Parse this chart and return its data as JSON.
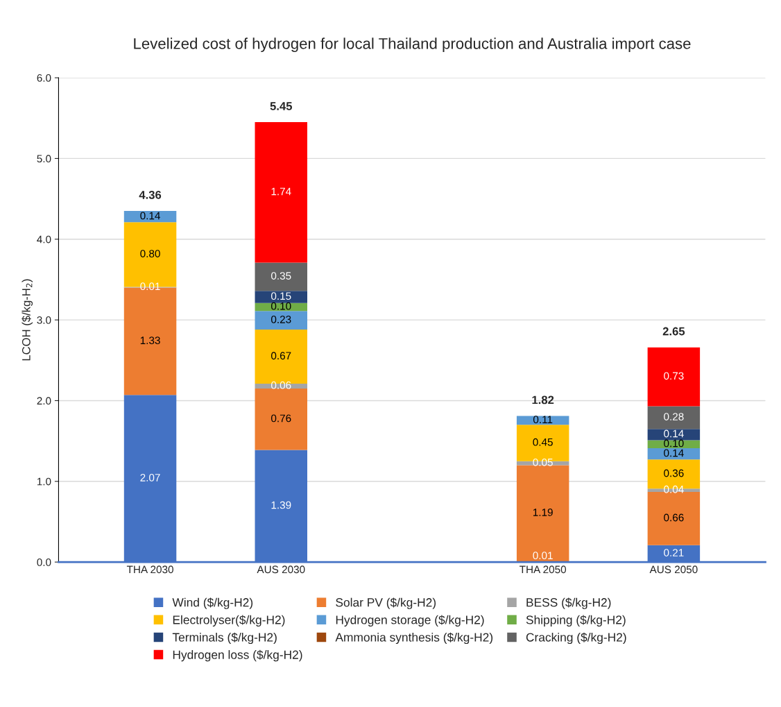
{
  "chart_data": {
    "type": "bar",
    "stacked": true,
    "title": "Levelized cost of hydrogen for local Thailand production and Australia import case",
    "ylabel": "LCOH ($/kg-H$_{2}$)",
    "categories": [
      "THA 2030",
      "AUS 2030",
      null,
      "THA 2050",
      "AUS 2050"
    ],
    "series": [
      {
        "name": "Wind ($/kg-H2)",
        "color": "#4472c4",
        "values": [
          2.07,
          1.39,
          null,
          0.01,
          0.21
        ],
        "value_labels": [
          "2.07",
          "1.39",
          null,
          "0.01",
          "0.21"
        ]
      },
      {
        "name": "Solar PV ($/kg-H2)",
        "color": "#ed7d31",
        "values": [
          1.33,
          0.76,
          null,
          1.19,
          0.66
        ],
        "value_labels": [
          "1.33",
          "0.76",
          null,
          "1.19",
          "0.66"
        ]
      },
      {
        "name": "BESS ($/kg-H2)",
        "color": "#a5a5a5",
        "values": [
          0.01,
          0.06,
          null,
          0.05,
          0.04
        ],
        "value_labels": [
          "0.01",
          "0.06",
          null,
          "0.05",
          "0.04"
        ]
      },
      {
        "name": "Electrolyser($/kg-H2)",
        "color": "#ffc000",
        "values": [
          0.8,
          0.67,
          null,
          0.45,
          0.36
        ],
        "value_labels": [
          "0.80",
          "0.67",
          null,
          "0.45",
          "0.36"
        ]
      },
      {
        "name": "Hydrogen storage ($/kg-H2)",
        "color": "#5b9bd5",
        "values": [
          0.14,
          0.23,
          null,
          0.11,
          0.14
        ],
        "value_labels": [
          "0.14",
          "0.23",
          null,
          "0.11",
          "0.14"
        ]
      },
      {
        "name": "Shipping ($/kg-H2)",
        "color": "#70ad47",
        "values": [
          null,
          0.1,
          null,
          null,
          0.1
        ],
        "value_labels": [
          null,
          "0.10",
          null,
          null,
          "0.10"
        ]
      },
      {
        "name": "Terminals ($/kg-H2)",
        "color": "#264478",
        "values": [
          null,
          0.15,
          null,
          null,
          0.14
        ],
        "value_labels": [
          null,
          "0.15",
          null,
          null,
          "0.14"
        ]
      },
      {
        "name": "Ammonia synthesis ($/kg-H2)",
        "color": "#9e480e",
        "values": [
          null,
          null,
          null,
          null,
          null
        ]
      },
      {
        "name": "Cracking ($/kg-H2)",
        "color": "#636363",
        "values": [
          null,
          0.35,
          null,
          null,
          0.28
        ],
        "value_labels": [
          null,
          "0.35",
          null,
          null,
          "0.28"
        ]
      },
      {
        "name": "Hydrogen loss ($/kg-H2)",
        "color": "#ff0000",
        "values": [
          null,
          1.74,
          null,
          null,
          0.73
        ],
        "value_labels": [
          null,
          "1.74",
          null,
          null,
          "0.73"
        ]
      }
    ],
    "totals": [
      "4.36",
      "5.45",
      null,
      "1.82",
      "2.65"
    ],
    "ylim": [
      0,
      6
    ],
    "yticks": [
      {
        "value": 0,
        "label": "0.0"
      },
      {
        "value": 1,
        "label": "1.0"
      },
      {
        "value": 2,
        "label": "2.0"
      },
      {
        "value": 3,
        "label": "3.0"
      },
      {
        "value": 4,
        "label": "4.0"
      },
      {
        "value": 5,
        "label": "5.0"
      },
      {
        "value": 6,
        "label": "6.0"
      }
    ],
    "grid": "y",
    "legend": "bottom"
  }
}
